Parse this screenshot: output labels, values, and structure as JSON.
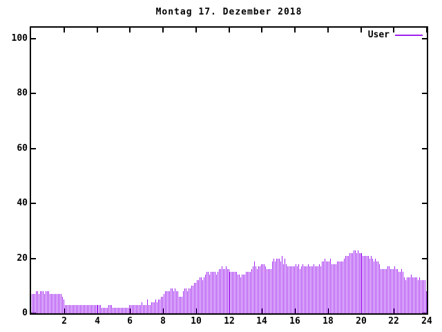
{
  "title": "Montag 17. Dezember 2018",
  "legend": {
    "label": "User"
  },
  "colors": {
    "series": "#A020F0",
    "axis": "#000000",
    "background": "#FFFFFF"
  },
  "chart_data": {
    "type": "bar",
    "title": "Montag 17. Dezember 2018",
    "series_name": "User",
    "x_unit": "hour of day",
    "sample_interval_minutes": 5,
    "xlabel": "",
    "ylabel": "",
    "xlim": [
      0,
      24
    ],
    "ylim": [
      0,
      104
    ],
    "x_ticks": [
      2,
      4,
      6,
      8,
      10,
      12,
      14,
      16,
      18,
      20,
      22,
      24
    ],
    "y_ticks": [
      0,
      20,
      40,
      60,
      80,
      100
    ],
    "grid": false,
    "legend_position": "top-right-inside",
    "values": [
      7,
      7,
      7,
      8,
      8,
      7,
      8,
      8,
      8,
      7,
      8,
      8,
      8,
      7,
      7,
      7,
      7,
      7,
      7,
      7,
      7,
      7,
      6,
      5,
      3,
      3,
      3,
      3,
      3,
      3,
      3,
      3,
      3,
      3,
      3,
      3,
      3,
      3,
      3,
      3,
      3,
      3,
      3,
      3,
      3,
      3,
      3,
      3,
      3,
      3,
      3,
      2,
      2,
      2,
      2,
      2,
      3,
      3,
      3,
      2,
      2,
      2,
      2,
      2,
      2,
      2,
      2,
      2,
      2,
      2,
      2,
      3,
      3,
      3,
      3,
      3,
      3,
      3,
      3,
      3,
      4,
      3,
      3,
      3,
      5,
      3,
      3,
      4,
      4,
      4,
      5,
      4,
      5,
      5,
      6,
      6,
      7,
      8,
      8,
      8,
      8,
      9,
      9,
      8,
      9,
      8,
      8,
      6,
      6,
      6,
      8,
      9,
      9,
      8,
      9,
      9,
      10,
      10,
      11,
      11,
      12,
      12,
      13,
      13,
      12,
      13,
      14,
      15,
      15,
      14,
      15,
      15,
      15,
      15,
      14,
      15,
      16,
      16,
      17,
      16,
      16,
      17,
      16,
      16,
      15,
      15,
      15,
      15,
      15,
      15,
      14,
      14,
      13,
      14,
      14,
      14,
      15,
      15,
      15,
      15,
      16,
      17,
      19,
      17,
      16,
      17,
      17,
      18,
      18,
      18,
      17,
      16,
      16,
      16,
      16,
      19,
      20,
      19,
      20,
      20,
      20,
      19,
      21,
      18,
      20,
      18,
      17,
      17,
      17,
      17,
      17,
      17,
      18,
      17,
      18,
      16,
      17,
      18,
      17,
      17,
      17,
      18,
      17,
      17,
      17,
      18,
      17,
      17,
      17,
      18,
      17,
      19,
      19,
      20,
      19,
      19,
      19,
      20,
      18,
      18,
      18,
      18,
      19,
      19,
      19,
      19,
      19,
      20,
      21,
      21,
      21,
      22,
      22,
      22,
      23,
      23,
      22,
      23,
      22,
      22,
      22,
      21,
      21,
      21,
      21,
      21,
      20,
      21,
      20,
      19,
      20,
      19,
      19,
      18,
      16,
      16,
      16,
      16,
      16,
      17,
      17,
      16,
      16,
      16,
      17,
      16,
      16,
      15,
      15,
      16,
      15,
      13,
      12,
      13,
      13,
      13,
      14,
      13,
      13,
      13,
      13,
      12,
      13,
      12,
      12,
      12,
      12,
      8
    ]
  }
}
